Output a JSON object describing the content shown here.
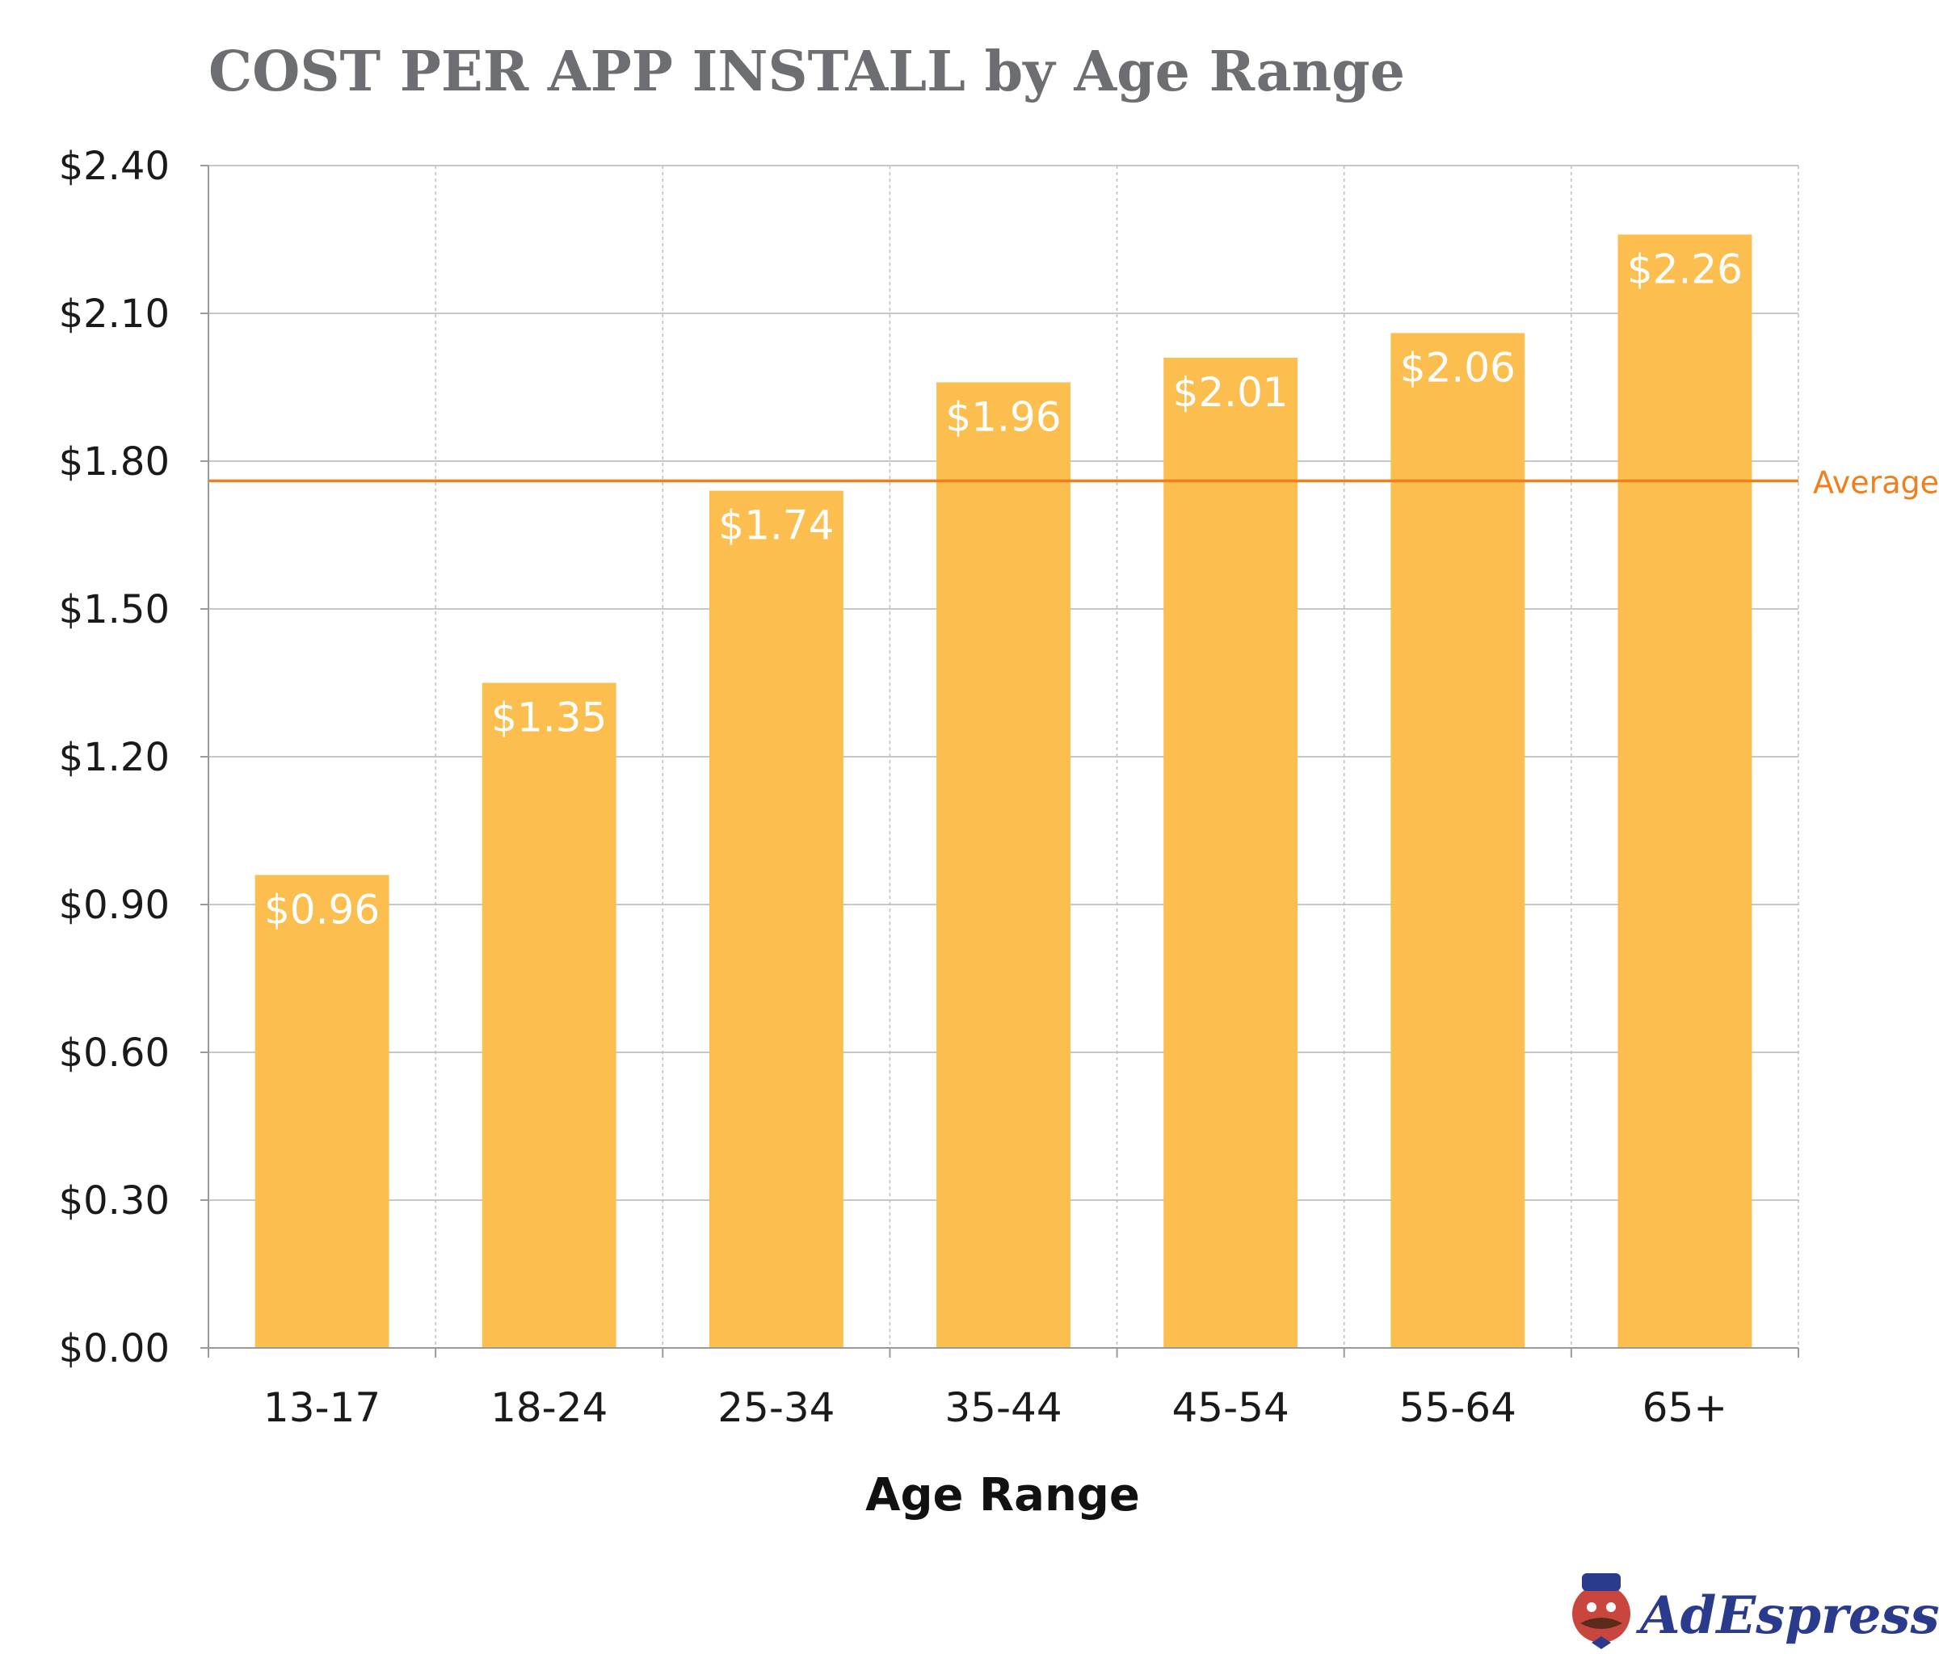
{
  "chart_data": {
    "type": "bar",
    "title": "COST PER APP INSTALL by Age Range",
    "xlabel": "Age Range",
    "ylabel": "",
    "categories": [
      "13-17",
      "18-24",
      "25-34",
      "35-44",
      "45-54",
      "55-64",
      "65+"
    ],
    "values": [
      0.96,
      1.35,
      1.74,
      1.96,
      2.01,
      2.06,
      2.26
    ],
    "data_labels": [
      "$0.96",
      "$1.35",
      "$1.74",
      "$1.96",
      "$2.01",
      "$2.06",
      "$2.26"
    ],
    "ylim": [
      0,
      2.4
    ],
    "yticks": [
      0,
      0.3,
      0.6,
      0.9,
      1.2,
      1.5,
      1.8,
      2.1,
      2.4
    ],
    "ytick_labels": [
      "$0.00",
      "$0.30",
      "$0.60",
      "$0.90",
      "$1.20",
      "$1.50",
      "$1.80",
      "$2.10",
      "$2.40"
    ],
    "grid": true,
    "reference_line": {
      "label": "Average",
      "value": 1.76,
      "color": "#f07f1e"
    },
    "bar_color": "#fcbf4f"
  },
  "branding": {
    "logo_text": "AdEspresso",
    "logo_color": "#2a3a8c",
    "logo_icon": "mascot-icon"
  }
}
